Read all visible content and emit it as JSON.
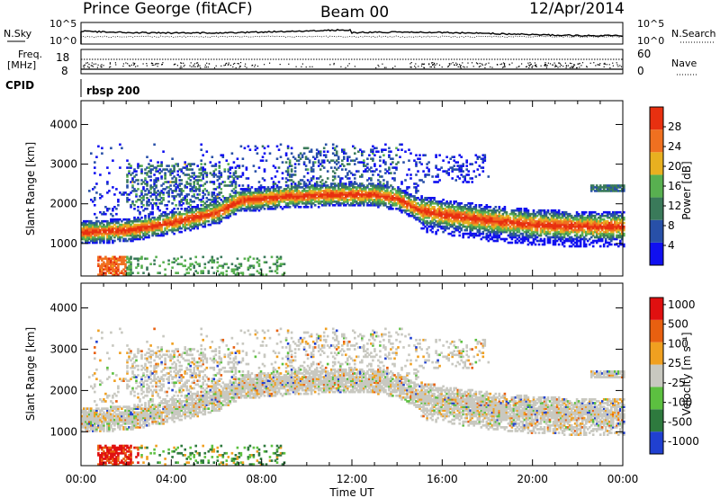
{
  "header": {
    "title": "Prince George (fitACF)",
    "beam": "Beam 00",
    "date": "12/Apr/2014"
  },
  "nsky_panel": {
    "left_label": "N.Sky",
    "left_ticks": [
      "10^5",
      "10^0"
    ],
    "right_label": "N.Search",
    "right_ticks": [
      "10^5",
      "10^0"
    ]
  },
  "freq_panel": {
    "left_label_line1": "Freq.",
    "left_label_line2": "[MHz]",
    "left_ticks": [
      "18",
      "8"
    ],
    "right_label": "Nave",
    "right_ticks": [
      "60",
      "0"
    ]
  },
  "cpid": {
    "label": "CPID",
    "program": "rbsp 200"
  },
  "chart_data": [
    {
      "type": "heatmap",
      "parameter": "power",
      "ylabel": "Slant Range [km]",
      "ylim": [
        180,
        4600
      ],
      "yticks": [
        "1000",
        "2000",
        "3000",
        "4000"
      ],
      "xlim_hours": [
        0,
        24
      ],
      "colorbar_label": "Power [dB]",
      "colorbar_range": [
        0,
        32
      ],
      "colorbar_ticks": [
        "4",
        "8",
        "12",
        "16",
        "20",
        "24",
        "28"
      ],
      "colors": [
        "#1010f0",
        "#2850a8",
        "#3a7a5a",
        "#58b050",
        "#e8b020",
        "#f07020",
        "#e83010"
      ]
    },
    {
      "type": "heatmap",
      "parameter": "velocity",
      "ylabel": "Slant Range [km]",
      "ylim": [
        180,
        4600
      ],
      "yticks": [
        "1000",
        "2000",
        "3000",
        "4000"
      ],
      "xlim_hours": [
        0,
        24
      ],
      "colorbar_label": "Velocity [m s⁻¹]",
      "colorbar_ticks": [
        "1000",
        "500",
        "100",
        "25",
        "-25",
        "-100",
        "-500",
        "-1000"
      ],
      "colors": [
        "#2040d0",
        "#2e7a3e",
        "#5cc040",
        "#c8c8c0",
        "#f0a020",
        "#e86010",
        "#e01010"
      ]
    }
  ],
  "xaxis": {
    "label": "Time UT",
    "ticks": [
      "00:00",
      "04:00",
      "08:00",
      "12:00",
      "16:00",
      "20:00",
      "00:00"
    ]
  },
  "ionosphere_band": {
    "description_key": "range of main scatter band (km) vs time (h)",
    "main_band": [
      [
        0,
        1250
      ],
      [
        2,
        1300
      ],
      [
        4,
        1500
      ],
      [
        6,
        1750
      ],
      [
        7,
        2050
      ],
      [
        8,
        2100
      ],
      [
        9,
        2150
      ],
      [
        11,
        2200
      ],
      [
        13,
        2200
      ],
      [
        14,
        2100
      ],
      [
        15,
        1800
      ],
      [
        16,
        1700
      ],
      [
        18,
        1550
      ],
      [
        20,
        1450
      ],
      [
        22,
        1400
      ],
      [
        24,
        1400
      ]
    ]
  }
}
